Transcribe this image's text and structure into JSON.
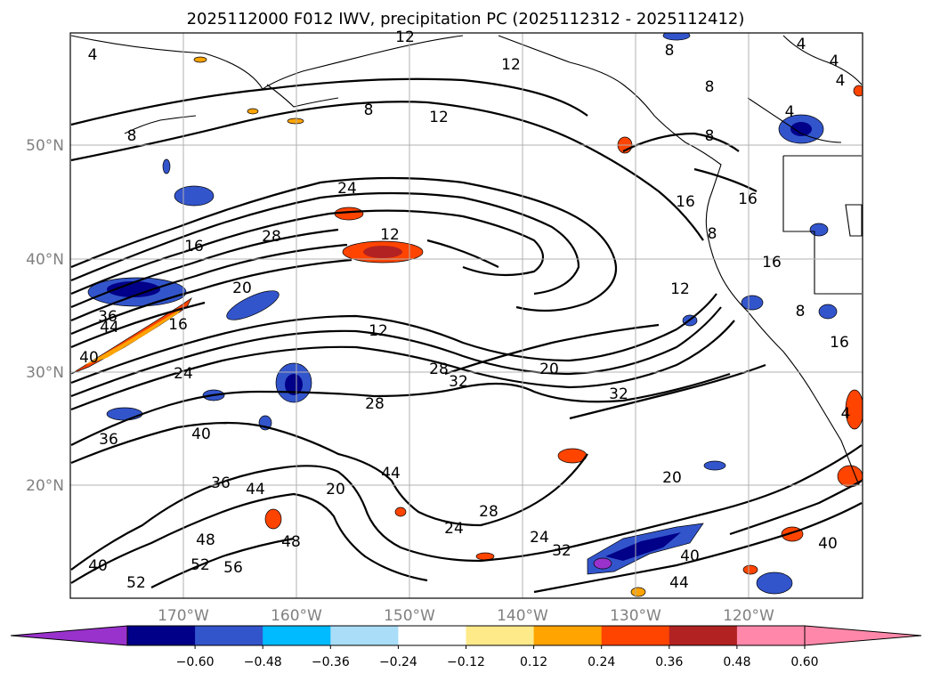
{
  "title": "2025112000 F012 IWV, precipitation PC (2025112312 - 2025112412)",
  "colors": {
    "contour": "#000000",
    "grid": "#b0b0b0",
    "land": "#000000"
  },
  "x_ticks": [
    "170°W",
    "160°W",
    "150°W",
    "140°W",
    "130°W",
    "120°W"
  ],
  "y_ticks": [
    "50°N",
    "40°N",
    "30°N",
    "20°N"
  ],
  "colorbar": {
    "ticks": [
      "−0.60",
      "−0.48",
      "−0.36",
      "−0.24",
      "−0.12",
      "0.12",
      "0.24",
      "0.36",
      "0.48",
      "0.60"
    ],
    "colors": [
      "#000088",
      "#3355cc",
      "#00bbff",
      "#aaddf7",
      "#ffffff",
      "#ffea8a",
      "#ffa400",
      "#ff4400",
      "#b22222",
      "#ff88aa"
    ],
    "under_color": "#9932cc",
    "over_color": "#ff88aa"
  },
  "contour_labels": [
    "4",
    "12",
    "4",
    "4",
    "4",
    "8",
    "12",
    "8",
    "8",
    "12",
    "8",
    "8",
    "4",
    "16",
    "24",
    "28",
    "12",
    "16",
    "16",
    "20",
    "12",
    "16",
    "36",
    "44",
    "40",
    "12",
    "8",
    "24",
    "28",
    "32",
    "20",
    "32",
    "28",
    "40",
    "36",
    "36",
    "44",
    "44",
    "20",
    "20",
    "28",
    "24",
    "24",
    "32",
    "48",
    "48",
    "52",
    "56",
    "52",
    "40",
    "40",
    "44",
    "40",
    "16",
    "16",
    "8",
    "4"
  ]
}
